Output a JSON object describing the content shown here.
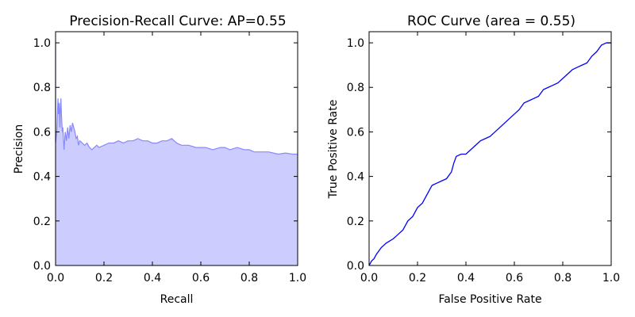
{
  "chart_data": [
    {
      "type": "area",
      "title": "Precision-Recall Curve: AP=0.55",
      "xlabel": "Recall",
      "ylabel": "Precision",
      "xlim": [
        0.0,
        1.0
      ],
      "ylim": [
        0.0,
        1.05
      ],
      "xticks": [
        "0.0",
        "0.2",
        "0.4",
        "0.6",
        "0.8",
        "1.0"
      ],
      "yticks": [
        "0.0",
        "0.2",
        "0.4",
        "0.6",
        "0.8",
        "1.0"
      ],
      "grid": false,
      "fill_color": "#ccccff",
      "line_color": "#8888ff",
      "series": [
        {
          "x": [
            0.0,
            0.0,
            0.005,
            0.01,
            0.012,
            0.015,
            0.018,
            0.02,
            0.022,
            0.025,
            0.028,
            0.03,
            0.035,
            0.04,
            0.045,
            0.05,
            0.055,
            0.06,
            0.065,
            0.07,
            0.075,
            0.08,
            0.085,
            0.09,
            0.095,
            0.1,
            0.11,
            0.12,
            0.13,
            0.14,
            0.15,
            0.16,
            0.17,
            0.18,
            0.2,
            0.22,
            0.24,
            0.26,
            0.28,
            0.3,
            0.32,
            0.34,
            0.36,
            0.38,
            0.4,
            0.42,
            0.44,
            0.46,
            0.48,
            0.5,
            0.52,
            0.55,
            0.58,
            0.6,
            0.62,
            0.65,
            0.68,
            0.7,
            0.72,
            0.75,
            0.78,
            0.8,
            0.82,
            0.85,
            0.88,
            0.9,
            0.92,
            0.95,
            0.98,
            1.0
          ],
          "y": [
            1.0,
            0.55,
            0.6,
            0.75,
            0.68,
            0.73,
            0.62,
            0.7,
            0.75,
            0.66,
            0.6,
            0.62,
            0.52,
            0.6,
            0.56,
            0.62,
            0.57,
            0.63,
            0.6,
            0.64,
            0.62,
            0.6,
            0.57,
            0.58,
            0.54,
            0.56,
            0.55,
            0.54,
            0.55,
            0.53,
            0.52,
            0.53,
            0.54,
            0.53,
            0.54,
            0.55,
            0.55,
            0.56,
            0.55,
            0.56,
            0.56,
            0.57,
            0.56,
            0.56,
            0.55,
            0.55,
            0.56,
            0.56,
            0.57,
            0.55,
            0.54,
            0.54,
            0.53,
            0.53,
            0.53,
            0.52,
            0.53,
            0.53,
            0.52,
            0.53,
            0.52,
            0.52,
            0.51,
            0.51,
            0.51,
            0.505,
            0.5,
            0.505,
            0.5,
            0.5
          ]
        }
      ]
    },
    {
      "type": "line",
      "title": "ROC Curve (area = 0.55)",
      "xlabel": "False Positive Rate",
      "ylabel": "True Positive Rate",
      "xlim": [
        0.0,
        1.0
      ],
      "ylim": [
        0.0,
        1.05
      ],
      "xticks": [
        "0.0",
        "0.2",
        "0.4",
        "0.6",
        "0.8",
        "1.0"
      ],
      "yticks": [
        "0.0",
        "0.2",
        "0.4",
        "0.6",
        "0.8",
        "1.0"
      ],
      "grid": false,
      "line_color": "#0000ff",
      "series": [
        {
          "x": [
            0.0,
            0.01,
            0.02,
            0.03,
            0.05,
            0.07,
            0.1,
            0.12,
            0.14,
            0.16,
            0.18,
            0.2,
            0.22,
            0.24,
            0.26,
            0.28,
            0.3,
            0.32,
            0.34,
            0.35,
            0.36,
            0.38,
            0.4,
            0.42,
            0.44,
            0.46,
            0.48,
            0.5,
            0.52,
            0.54,
            0.56,
            0.58,
            0.6,
            0.62,
            0.64,
            0.66,
            0.68,
            0.7,
            0.72,
            0.74,
            0.76,
            0.78,
            0.8,
            0.82,
            0.84,
            0.86,
            0.88,
            0.9,
            0.92,
            0.94,
            0.96,
            0.98,
            1.0
          ],
          "y": [
            0.0,
            0.02,
            0.03,
            0.05,
            0.08,
            0.1,
            0.12,
            0.14,
            0.16,
            0.2,
            0.22,
            0.26,
            0.28,
            0.32,
            0.36,
            0.37,
            0.38,
            0.39,
            0.42,
            0.46,
            0.49,
            0.5,
            0.5,
            0.52,
            0.54,
            0.56,
            0.57,
            0.58,
            0.6,
            0.62,
            0.64,
            0.66,
            0.68,
            0.7,
            0.73,
            0.74,
            0.75,
            0.76,
            0.79,
            0.8,
            0.81,
            0.82,
            0.84,
            0.86,
            0.88,
            0.89,
            0.9,
            0.91,
            0.94,
            0.96,
            0.99,
            1.0,
            1.0
          ]
        }
      ]
    }
  ]
}
